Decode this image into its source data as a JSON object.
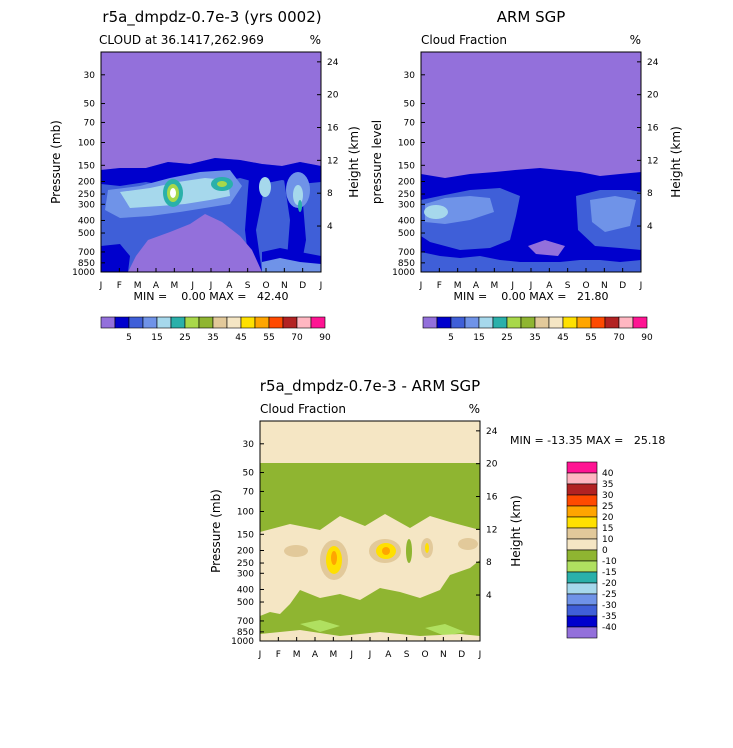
{
  "chart_data": [
    {
      "type": "heatmap",
      "title": "r5a_dmpdz-0.7e-3 (yrs 0002)",
      "subtitle": "CLOUD at 36.1417,262.969",
      "units": "%",
      "ylabel": "Pressure (mb)",
      "ylabel_right": "Height (km)",
      "x_ticks": [
        "J",
        "F",
        "M",
        "A",
        "M",
        "J",
        "J",
        "A",
        "S",
        "O",
        "N",
        "D",
        "J"
      ],
      "y_ticks": [
        "30",
        "50",
        "70",
        "100",
        "150",
        "200",
        "250",
        "300",
        "400",
        "500",
        "700",
        "850",
        "1000"
      ],
      "y_right_ticks": [
        "24",
        "20",
        "16",
        "12",
        "8",
        "4"
      ],
      "ylim": [
        1000,
        20
      ],
      "y_scale": "log",
      "stats": "MIN =    0.00 MAX =   42.40",
      "min": 0.0,
      "max": 42.4,
      "colorbar_labels": [
        "5",
        "15",
        "25",
        "35",
        "45",
        "55",
        "70",
        "90"
      ]
    },
    {
      "type": "heatmap",
      "title": "ARM SGP",
      "subtitle": "Cloud Fraction",
      "units": "%",
      "ylabel": "pressure level",
      "ylabel_right": "Height (km)",
      "x_ticks": [
        "J",
        "F",
        "M",
        "A",
        "M",
        "J",
        "J",
        "A",
        "S",
        "O",
        "N",
        "D",
        "J"
      ],
      "y_ticks": [
        "30",
        "50",
        "70",
        "100",
        "150",
        "200",
        "250",
        "300",
        "400",
        "500",
        "700",
        "850",
        "1000"
      ],
      "y_right_ticks": [
        "24",
        "20",
        "16",
        "12",
        "8",
        "4"
      ],
      "ylim": [
        1000,
        20
      ],
      "y_scale": "log",
      "stats": "MIN =    0.00 MAX =   21.80",
      "min": 0.0,
      "max": 21.8,
      "colorbar_labels": [
        "5",
        "15",
        "25",
        "35",
        "45",
        "55",
        "70",
        "90"
      ]
    },
    {
      "type": "heatmap",
      "title": "r5a_dmpdz-0.7e-3 - ARM SGP",
      "subtitle": "Cloud Fraction",
      "units": "%",
      "ylabel": "Pressure (mb)",
      "ylabel_right": "Height (km)",
      "x_ticks": [
        "J",
        "F",
        "M",
        "A",
        "M",
        "J",
        "J",
        "A",
        "S",
        "O",
        "N",
        "D",
        "J"
      ],
      "y_ticks": [
        "30",
        "50",
        "70",
        "100",
        "150",
        "200",
        "250",
        "300",
        "400",
        "500",
        "700",
        "850",
        "1000"
      ],
      "y_right_ticks": [
        "24",
        "20",
        "16",
        "12",
        "8",
        "4"
      ],
      "ylim": [
        1000,
        20
      ],
      "y_scale": "log",
      "stats": "MIN = -13.35 MAX =   25.18",
      "min": -13.35,
      "max": 25.18,
      "colorbar_labels": [
        "40",
        "35",
        "30",
        "25",
        "20",
        "15",
        "10",
        "0",
        "-10",
        "-15",
        "-20",
        "-25",
        "-30",
        "-35",
        "-40"
      ]
    }
  ],
  "colors": {
    "seq_palette": [
      "#9370db",
      "#0000cd",
      "#3f5fd8",
      "#6f93e8",
      "#a6d8ec",
      "#2ab0aa",
      "#a8d84a",
      "#8fb531",
      "#e2c99a",
      "#f5e6c4",
      "#ffe000",
      "#ffa500",
      "#ff4a00",
      "#b22222",
      "#ffb6c1",
      "#ff1493"
    ],
    "diff_palette": [
      "#ff1493",
      "#ffb6c1",
      "#b22222",
      "#ff4a00",
      "#ffa500",
      "#ffe000",
      "#e2c99a",
      "#f5e6c4",
      "#8fb531",
      "#b0e060",
      "#2ab0aa",
      "#a6d8ec",
      "#6f93e8",
      "#3f5fd8",
      "#0000cd",
      "#9370db"
    ]
  }
}
